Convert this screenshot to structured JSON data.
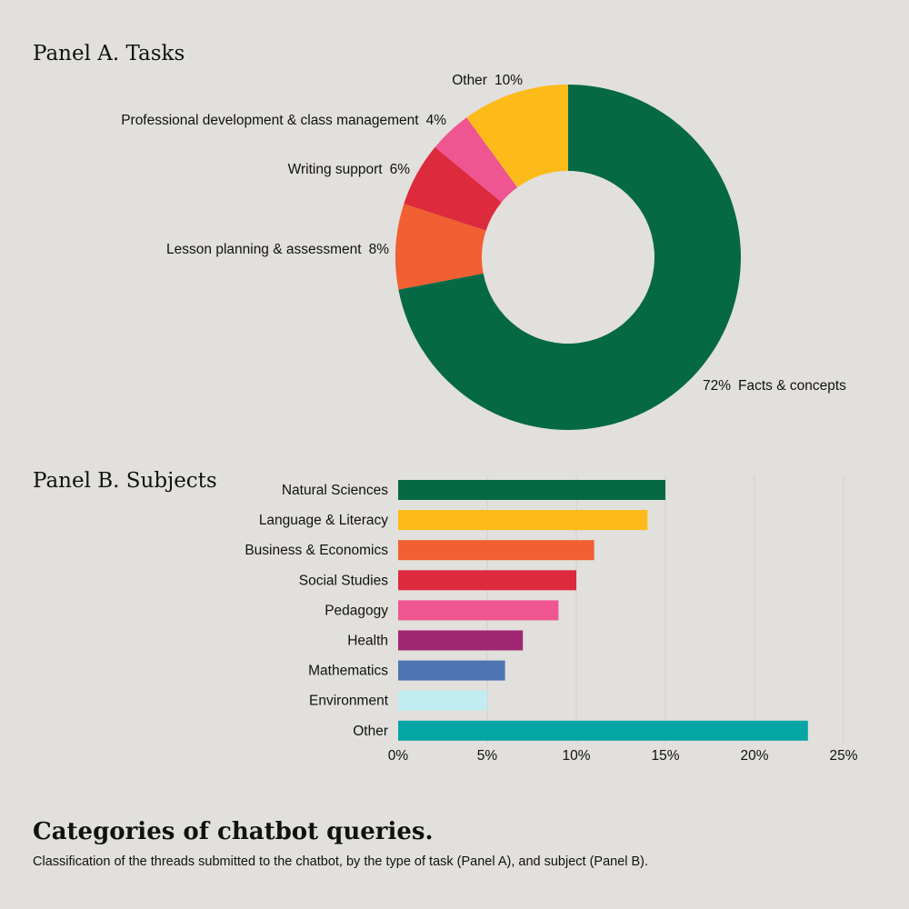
{
  "chart_data": [
    {
      "type": "pie",
      "title": "Panel A. Tasks",
      "donut": true,
      "slices": [
        {
          "label": "Facts & concepts",
          "value": 72,
          "display": "72%",
          "color": "#066945"
        },
        {
          "label": "Lesson planning & assessment",
          "value": 8,
          "display": "8%",
          "color": "#f15f32"
        },
        {
          "label": "Writing support",
          "value": 6,
          "display": "6%",
          "color": "#dd2a3d"
        },
        {
          "label": "Professional development & class management",
          "value": 4,
          "display": "4%",
          "color": "#ef5590"
        },
        {
          "label": "Other",
          "value": 10,
          "display": "10%",
          "color": "#fdbb19"
        }
      ]
    },
    {
      "type": "bar",
      "orientation": "horizontal",
      "title": "Panel B. Subjects",
      "categories": [
        "Natural Sciences",
        "Language & Literacy",
        "Business & Economics",
        "Social Studies",
        "Pedagogy",
        "Health",
        "Mathematics",
        "Environment",
        "Other"
      ],
      "values": [
        15,
        14,
        11,
        10,
        9,
        7,
        6,
        5,
        23
      ],
      "colors": [
        "#066945",
        "#fdbb19",
        "#f15f32",
        "#dd2a3d",
        "#ef5590",
        "#a12671",
        "#4e74b2",
        "#c0ecf2",
        "#05a5a3"
      ],
      "xlim": [
        0,
        25
      ],
      "xticks": [
        "0%",
        "5%",
        "10%",
        "15%",
        "20%",
        "25%"
      ],
      "grid": true
    }
  ],
  "caption": {
    "title": "Categories of chatbot queries.",
    "text": "Classification of the threads submitted to the chatbot, by the type of task (Panel A), and subject (Panel B)."
  }
}
